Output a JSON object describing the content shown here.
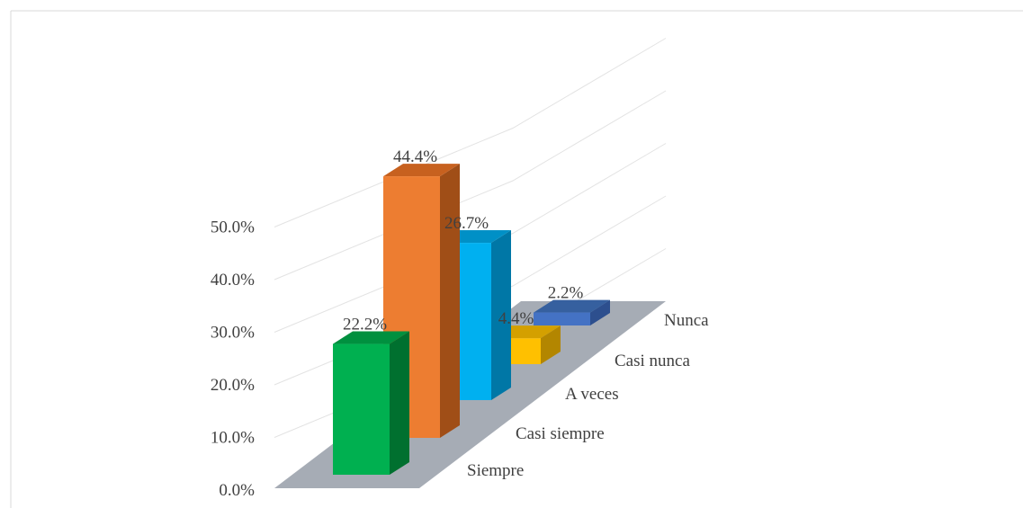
{
  "chart_data": {
    "type": "bar",
    "style": "3d-column",
    "categories": [
      "Siempre",
      "Casi siempre",
      "A veces",
      "Casi nunca",
      "Nunca"
    ],
    "values": [
      22.2,
      44.4,
      26.7,
      4.4,
      2.2
    ],
    "data_labels": [
      "22.2%",
      "44.4%",
      "26.7%",
      "4.4%",
      "2.2%"
    ],
    "y_ticks": [
      "0.0%",
      "10.0%",
      "20.0%",
      "30.0%",
      "40.0%",
      "50.0%"
    ],
    "ylim": [
      0,
      50
    ],
    "grid": true,
    "legend": "none",
    "colors": [
      "#00b050",
      "#ed7d31",
      "#00b0f0",
      "#ffc000",
      "#4472c4"
    ],
    "side_colors": [
      "#00702f",
      "#a04e17",
      "#0077a6",
      "#b38600",
      "#2d4f8e"
    ],
    "top_colors": [
      "#00903f",
      "#c7611f",
      "#0090c6",
      "#d4a000",
      "#36609f"
    ],
    "floor_color": "#a6acb5",
    "grid_color": "#e3e3e3"
  }
}
